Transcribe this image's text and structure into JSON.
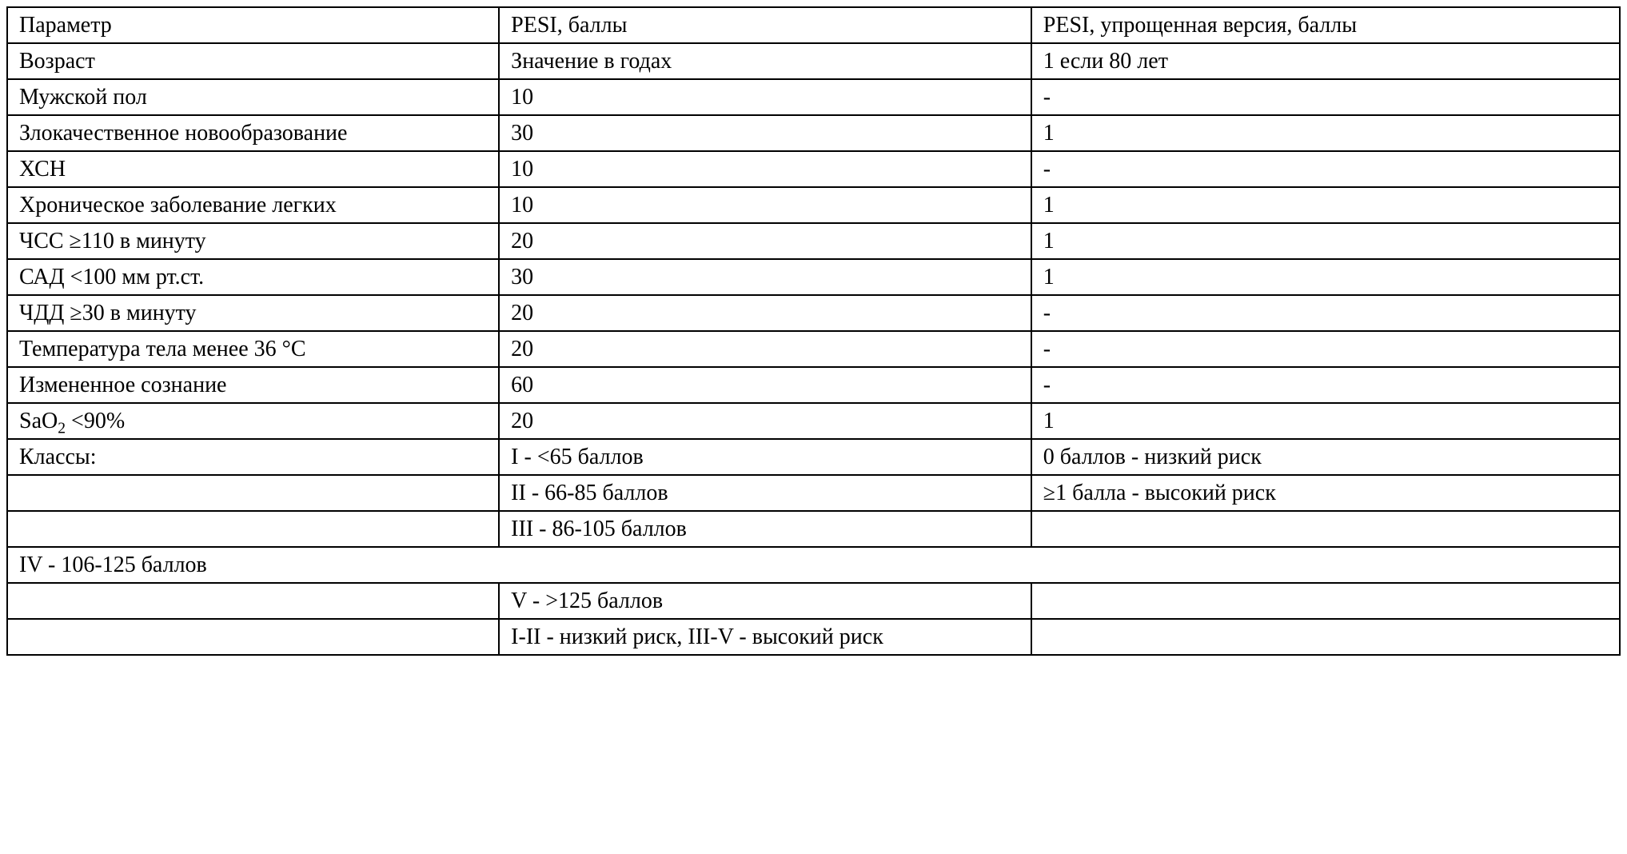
{
  "table": {
    "background_color": "#ffffff",
    "border_color": "#000000",
    "text_color": "#000000",
    "font_family": "Times New Roman",
    "font_size_pt": 21,
    "columns": [
      {
        "key": "param",
        "header": "Параметр",
        "width_pct": 30.5
      },
      {
        "key": "pesi",
        "header": "PESI, баллы",
        "width_pct": 33
      },
      {
        "key": "spesi",
        "header": "PESI, упрощенная версия, баллы",
        "width_pct": 36.5
      }
    ],
    "rows": [
      {
        "param": "Возраст",
        "pesi": "Значение в годах",
        "spesi": "1 если 80 лет"
      },
      {
        "param": "Мужской пол",
        "pesi": "10",
        "spesi": "-"
      },
      {
        "param": "Злокачественное новообразование",
        "pesi": "30",
        "spesi": "1"
      },
      {
        "param": "ХСН",
        "pesi": "10",
        "spesi": "-"
      },
      {
        "param": "Хроническое заболевание легких",
        "pesi": "10",
        "spesi": "1"
      },
      {
        "param": "ЧСС ≥110 в минуту",
        "pesi": "20",
        "spesi": "1"
      },
      {
        "param": "САД <100 мм рт.ст.",
        "pesi": "30",
        "spesi": "1"
      },
      {
        "param": "ЧДД ≥30 в минуту",
        "pesi": "20",
        "spesi": "-"
      },
      {
        "param": "Температура тела менее 36 °C",
        "pesi": "20",
        "spesi": "-"
      },
      {
        "param": "Измененное сознание",
        "pesi": "60",
        "spesi": "-"
      },
      {
        "param_html": "SaO<span class=\"sub\">2</span> <90%",
        "param": "SaO2 <90%",
        "pesi": "20",
        "spesi": "1"
      },
      {
        "param": "Классы:",
        "pesi": "I - <65 баллов",
        "spesi": "0 баллов - низкий риск"
      },
      {
        "param": "",
        "pesi": "II - 66-85 баллов",
        "spesi": "≥1 балла - высокий риск"
      },
      {
        "param": "",
        "pesi": "III - 86-105 баллов",
        "spesi": ""
      },
      {
        "fullspan": true,
        "text": "IV - 106-125 баллов"
      },
      {
        "param": "",
        "pesi": "V - >125 баллов",
        "spesi": ""
      },
      {
        "param": "",
        "pesi": "I-II - низкий риск, III-V - высокий риск",
        "spesi": ""
      }
    ]
  }
}
